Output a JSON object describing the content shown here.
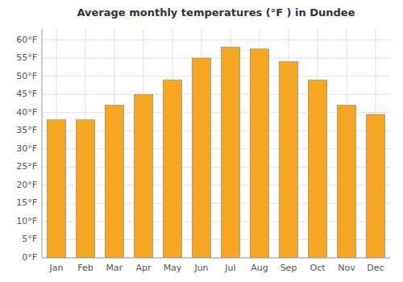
{
  "chart_data": {
    "type": "bar",
    "title": "Average monthly temperatures (°F ) in Dundee",
    "categories": [
      "Jan",
      "Feb",
      "Mar",
      "Apr",
      "May",
      "Jun",
      "Jul",
      "Aug",
      "Sep",
      "Oct",
      "Nov",
      "Dec"
    ],
    "values": [
      38,
      38,
      42,
      45,
      49,
      55,
      58,
      57.5,
      54,
      49,
      42,
      39.5
    ],
    "color": "#F5A623",
    "ylim": [
      0,
      63
    ],
    "yticks": [
      {
        "value": 0,
        "label": "0°F"
      },
      {
        "value": 5,
        "label": "5°F"
      },
      {
        "value": 10,
        "label": "10°F"
      },
      {
        "value": 15,
        "label": "15°F"
      },
      {
        "value": 20,
        "label": "20°F"
      },
      {
        "value": 25,
        "label": "25°F"
      },
      {
        "value": 30,
        "label": "30°F"
      },
      {
        "value": 35,
        "label": "35°F"
      },
      {
        "value": 40,
        "label": "40°F"
      },
      {
        "value": 45,
        "label": "45°F"
      },
      {
        "value": 50,
        "label": "50°F"
      },
      {
        "value": 55,
        "label": "55°F"
      },
      {
        "value": 60,
        "label": "60°F"
      }
    ],
    "grid": true
  }
}
